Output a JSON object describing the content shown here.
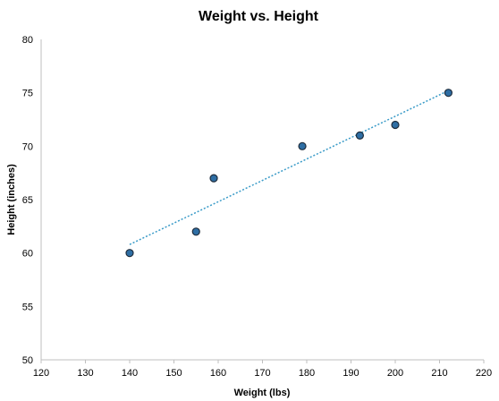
{
  "chart_data": {
    "type": "scatter",
    "title": "Weight vs. Height",
    "xlabel": "Weight (lbs)",
    "ylabel": "Height (inches)",
    "xlim": [
      120,
      220
    ],
    "ylim": [
      50,
      80
    ],
    "x_ticks": [
      120,
      130,
      140,
      150,
      160,
      170,
      180,
      190,
      200,
      210,
      220
    ],
    "y_ticks": [
      50,
      55,
      60,
      65,
      70,
      75,
      80
    ],
    "x_tick_labels": [
      "120",
      "130",
      "140",
      "150",
      "160",
      "170",
      "180",
      "190",
      "200",
      "210",
      "220"
    ],
    "y_tick_labels": [
      "50",
      "55",
      "60",
      "65",
      "70",
      "75",
      "80"
    ],
    "grid": false,
    "trendline": "linear",
    "series": [
      {
        "x": [
          140,
          155,
          159,
          179,
          192,
          200,
          212
        ],
        "y": [
          60,
          62,
          67,
          70,
          71,
          72,
          75
        ]
      }
    ],
    "colors": {
      "marker_fill": "#2e6ea4",
      "marker_stroke": "#1f2d3d",
      "trendline": "#3a9bc8",
      "axis": "#bfbfbf"
    }
  }
}
